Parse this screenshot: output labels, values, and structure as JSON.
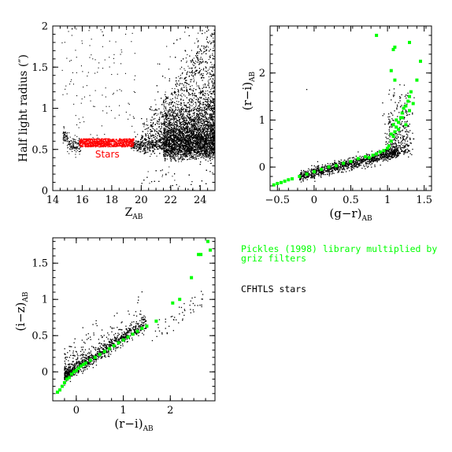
{
  "colors": {
    "stars_cfhtls": "#000000",
    "stars_selected": "#ff0000",
    "pickles": "#00ff00",
    "axes": "#000000"
  },
  "legend": {
    "pickles_line1": "Pickles (1998) library multiplied by",
    "pickles_line2": "griz filters",
    "cfhtls": "CFHTLS stars"
  },
  "chart_data": [
    {
      "type": "scatter",
      "panel": "top-left",
      "xlabel": "Z",
      "xlabel_sub": "AB",
      "ylabel": "Half light radius (″)",
      "xlim": [
        14,
        25
      ],
      "ylim": [
        0,
        2
      ],
      "xticks": [
        14,
        16,
        18,
        20,
        22,
        24
      ],
      "yticks": [
        0,
        0.5,
        1,
        1.5,
        2
      ],
      "ytick_labels": [
        "0",
        "0.5",
        "1",
        "1.5",
        "2"
      ],
      "annotation": "Stars",
      "annotation_pos": [
        17.7,
        0.4
      ],
      "series": [
        {
          "color_key": "stars_cfhtls",
          "description": "all detected objects, dense cloud at faint magnitudes"
        },
        {
          "name": "Stars",
          "color_key": "stars_selected",
          "x_range": [
            15.8,
            19.5
          ],
          "y_center": 0.58,
          "y_width": 0.1
        }
      ]
    },
    {
      "type": "scatter",
      "panel": "top-right",
      "xlabel": "(g−r)",
      "xlabel_sub": "AB",
      "ylabel": "(r−i)",
      "ylabel_sub": "AB",
      "xlim": [
        -0.6,
        1.6
      ],
      "ylim": [
        -0.5,
        3.0
      ],
      "xticks": [
        -0.5,
        0,
        0.5,
        1,
        1.5
      ],
      "xtick_labels": [
        "−0.5",
        "0",
        "0.5",
        "1",
        "1.5"
      ],
      "yticks": [
        0,
        1,
        2
      ],
      "ytick_labels": [
        "0",
        "1",
        "2"
      ],
      "series": [
        {
          "name": "CFHTLS stars",
          "color_key": "stars_cfhtls"
        },
        {
          "name": "Pickles (1998)",
          "color_key": "pickles",
          "x": [
            -0.55,
            -0.5,
            -0.45,
            -0.4,
            -0.35,
            -0.3,
            -0.2,
            -0.1,
            0.0,
            0.1,
            0.2,
            0.3,
            0.4,
            0.5,
            0.6,
            0.7,
            0.75,
            0.8,
            0.85,
            0.9,
            0.95,
            1.0,
            1.02,
            1.05,
            1.08,
            1.1,
            1.12,
            1.15,
            1.18,
            1.2,
            1.22,
            1.25,
            1.28,
            1.3,
            1.32,
            1.05,
            1.08,
            1.12,
            1.15,
            1.2,
            1.25,
            1.3,
            1.35,
            1.1,
            1.05,
            1.08,
            0.85,
            1.1,
            1.3,
            1.45,
            1.4
          ],
          "y": [
            -0.38,
            -0.35,
            -0.33,
            -0.3,
            -0.27,
            -0.25,
            -0.2,
            -0.15,
            -0.1,
            -0.05,
            0.0,
            0.03,
            0.08,
            0.12,
            0.18,
            0.22,
            0.2,
            0.25,
            0.28,
            0.32,
            0.35,
            0.4,
            0.45,
            0.55,
            0.65,
            0.75,
            0.85,
            0.95,
            1.05,
            1.15,
            1.25,
            1.3,
            1.4,
            1.5,
            1.6,
            0.7,
            0.9,
            1.0,
            0.8,
            1.05,
            0.9,
            1.2,
            1.35,
            1.85,
            2.05,
            2.5,
            2.8,
            2.55,
            2.65,
            2.25,
            1.85
          ]
        }
      ]
    },
    {
      "type": "scatter",
      "panel": "bottom-left",
      "xlabel": "(r−i)",
      "xlabel_sub": "AB",
      "ylabel": "(i−z)",
      "ylabel_sub": "AB",
      "xlim": [
        -0.5,
        2.95
      ],
      "ylim": [
        -0.4,
        1.85
      ],
      "xticks": [
        0,
        1,
        2
      ],
      "xtick_labels": [
        "0",
        "1",
        "2"
      ],
      "yticks": [
        0,
        0.5,
        1,
        1.5
      ],
      "ytick_labels": [
        "0",
        "0.5",
        "1",
        "1.5"
      ],
      "series": [
        {
          "name": "CFHTLS stars",
          "color_key": "stars_cfhtls"
        },
        {
          "name": "Pickles (1998)",
          "color_key": "pickles",
          "x": [
            -0.4,
            -0.35,
            -0.3,
            -0.25,
            -0.2,
            -0.15,
            -0.1,
            -0.05,
            0.0,
            0.05,
            0.1,
            0.15,
            0.2,
            0.3,
            0.4,
            0.5,
            0.6,
            0.7,
            0.8,
            0.9,
            1.0,
            1.1,
            1.2,
            1.3,
            1.4,
            1.5,
            1.7,
            2.05,
            2.2,
            2.45,
            2.6,
            2.65,
            2.8,
            2.85
          ],
          "y": [
            -0.28,
            -0.25,
            -0.2,
            -0.15,
            -0.1,
            -0.08,
            -0.03,
            0.0,
            0.02,
            0.05,
            0.08,
            0.1,
            0.12,
            0.16,
            0.2,
            0.24,
            0.28,
            0.32,
            0.36,
            0.4,
            0.44,
            0.48,
            0.52,
            0.56,
            0.6,
            0.63,
            0.7,
            0.95,
            1.0,
            1.3,
            1.62,
            1.62,
            1.8,
            1.68
          ]
        }
      ]
    }
  ]
}
